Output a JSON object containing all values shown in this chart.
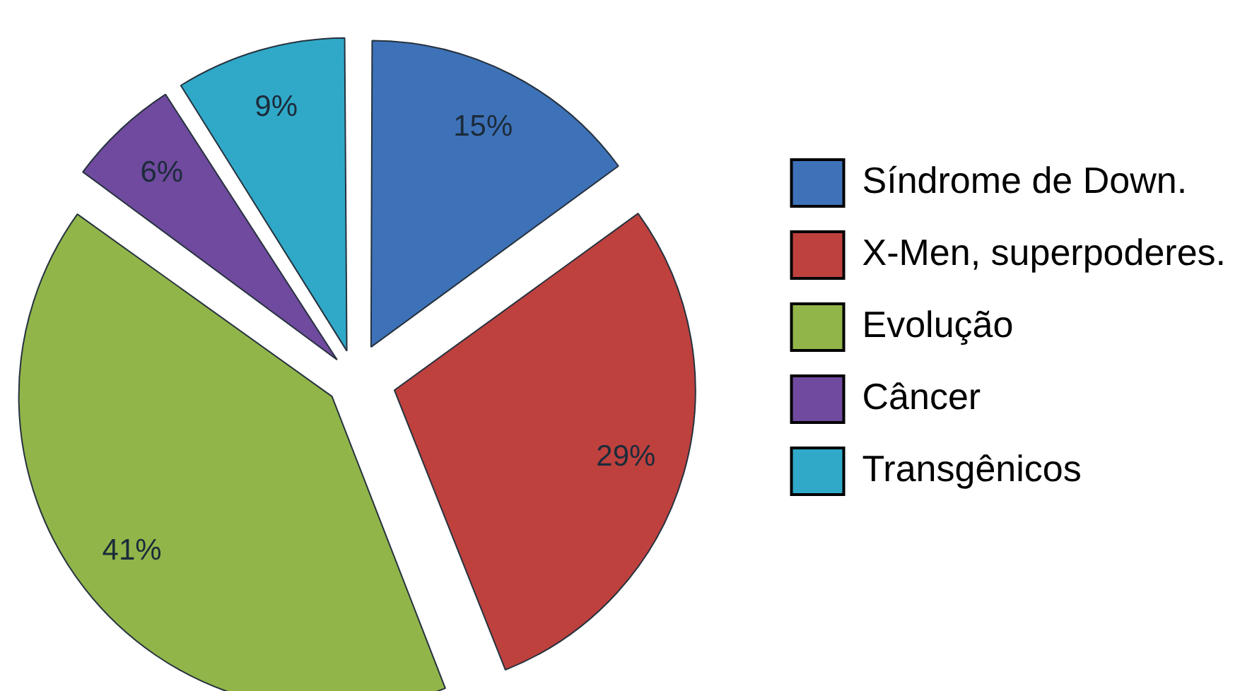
{
  "chart_data": {
    "type": "pie",
    "categories": [
      "Síndrome de Down.",
      "X-Men, superpoderes.",
      "Evolução",
      "Câncer",
      "Transgênicos"
    ],
    "values": [
      15,
      29,
      41,
      6,
      9
    ],
    "colors": [
      "#3e72b8",
      "#be413e",
      "#92b54a",
      "#6f4a9e",
      "#30a9c8"
    ],
    "value_labels": [
      "15%",
      "29%",
      "41%",
      "6%",
      "9%"
    ],
    "legend": "right"
  }
}
